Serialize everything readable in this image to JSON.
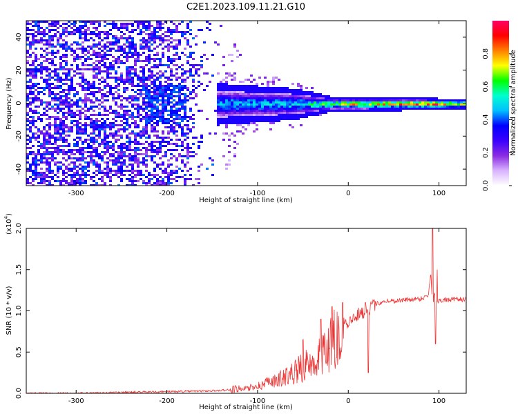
{
  "title": "C2E1.2023.109.11.21.G10",
  "chart_data": [
    {
      "type": "heatmap",
      "xlabel": "Height of straight line (km)",
      "ylabel": "Frequency (Hz)",
      "xlim": [
        -355,
        130
      ],
      "ylim": [
        -50,
        50
      ],
      "xticks": [
        -300,
        -200,
        -100,
        0,
        100
      ],
      "yticks": [
        -40,
        -20,
        0,
        20,
        40
      ],
      "colorbar": {
        "label": "Normalized spectral amplitude",
        "range": [
          0.0,
          1.0
        ],
        "ticks": [
          "0.0",
          "0.2",
          "0.4",
          "0.6",
          "0.8"
        ],
        "colormap": [
          "#ffffff",
          "#d9b3ff",
          "#8a2be2",
          "#3a00ff",
          "#0000ff",
          "#00bfff",
          "#00ffd0",
          "#00ff00",
          "#ffff00",
          "#ff8000",
          "#ff0000",
          "#ff0066"
        ]
      },
      "description_values": {
        "noise_region_x": [
          -355,
          -140
        ],
        "noise_amplitude": 0.35,
        "signal_band_center_hz": 0,
        "signal_start_x": -145,
        "band_halfwidth_hz": [
          [
            -145,
            8
          ],
          [
            -60,
            6
          ],
          [
            -20,
            3
          ],
          [
            130,
            2
          ]
        ],
        "band_peak_amplitude": [
          [
            -145,
            0.45
          ],
          [
            -60,
            0.5
          ],
          [
            -20,
            0.65
          ],
          [
            0,
            0.75
          ],
          [
            60,
            0.8
          ],
          [
            90,
            0.95
          ],
          [
            130,
            0.75
          ]
        ]
      }
    },
    {
      "type": "line",
      "xlabel": "Height of straight line (km)",
      "ylabel": "SNR (10 * v/v)",
      "multiplier": "(x10",
      "multiplier_exp": "4",
      "multiplier_close": ")",
      "xlim": [
        -355,
        130
      ],
      "ylim": [
        0.0,
        2.0
      ],
      "xticks": [
        -300,
        -200,
        -100,
        0,
        100
      ],
      "yticks": [
        "0.0",
        "0.5",
        "1.0",
        "1.5",
        "2.0"
      ],
      "series": [
        {
          "color": "#ee3333",
          "x": [
            -355,
            -300,
            -250,
            -200,
            -150,
            -120,
            -100,
            -80,
            -60,
            -40,
            -25,
            -12,
            -5,
            0,
            10,
            20,
            30,
            40,
            50,
            60,
            70,
            80,
            88,
            91,
            93,
            95,
            97,
            100,
            110,
            120,
            130
          ],
          "y": [
            0.0,
            0.0,
            0.01,
            0.02,
            0.03,
            0.05,
            0.1,
            0.18,
            0.3,
            0.45,
            0.65,
            0.8,
            0.9,
            0.85,
            0.95,
            1.0,
            1.08,
            1.12,
            1.12,
            1.13,
            1.14,
            1.15,
            1.18,
            1.45,
            1.05,
            1.25,
            1.1,
            1.13,
            1.13,
            1.14,
            1.14
          ],
          "spikes": [
            [
              -6,
              1.1
            ],
            [
              -18,
              1.05
            ],
            [
              -30,
              0.9
            ],
            [
              -50,
              0.65
            ],
            [
              93,
              2.05
            ],
            [
              96,
              0.6
            ],
            [
              98,
              1.5
            ],
            [
              22,
              0.25
            ],
            [
              19,
              1.1
            ]
          ]
        }
      ]
    }
  ]
}
